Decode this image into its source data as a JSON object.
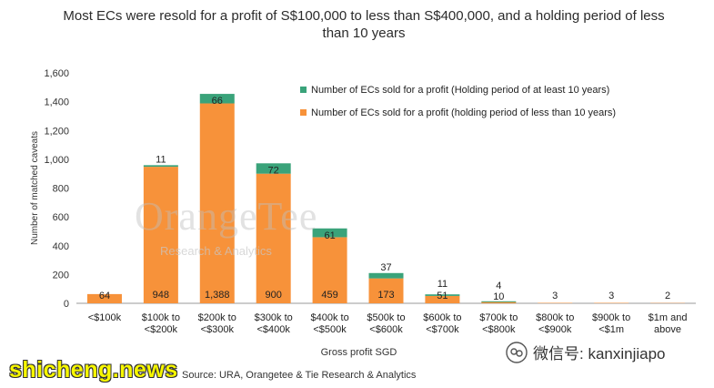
{
  "chart_data": {
    "type": "bar",
    "stacked": true,
    "title": "Most ECs were resold for a profit of S$100,000 to less than S$400,000, and a holding period of less than 10 years",
    "xlabel": "Gross profit SGD",
    "ylabel": "Number of matched caveats",
    "ylim": [
      0,
      1600
    ],
    "yticks": [
      "0",
      "200",
      "400",
      "600",
      "800",
      "1,000",
      "1,200",
      "1,400",
      "1,600"
    ],
    "grid": false,
    "legend_position": "top-right",
    "categories": [
      [
        "<$100k"
      ],
      [
        "$100k to",
        "<$200k"
      ],
      [
        "$200k to",
        "<$300k"
      ],
      [
        "$300k to",
        "<$400k"
      ],
      [
        "$400k to",
        "<$500k"
      ],
      [
        "$500k to",
        "<$600k"
      ],
      [
        "$600k to",
        "<$700k"
      ],
      [
        "$700k to",
        "<$800k"
      ],
      [
        "$800k to",
        "<$900k"
      ],
      [
        "$900k to",
        "<$1m"
      ],
      [
        "$1m and",
        "above"
      ]
    ],
    "series": [
      {
        "name": "Number of ECs sold for a profit (holding period of less than 10 years)",
        "color": "#f7923a",
        "values": [
          64,
          948,
          1388,
          900,
          459,
          173,
          51,
          10,
          3,
          3,
          2
        ],
        "labels": [
          "64",
          "948",
          "1,388",
          "900",
          "459",
          "173",
          "51",
          "10",
          "3",
          "3",
          "2"
        ]
      },
      {
        "name": "Number of ECs sold for a profit (Holding period of at least 10 years)",
        "color": "#3aa37a",
        "values": [
          0,
          11,
          66,
          72,
          61,
          37,
          11,
          4,
          0,
          0,
          0
        ],
        "labels": [
          "",
          "11",
          "66",
          "72",
          "61",
          "37",
          "11",
          "4",
          "",
          "",
          ""
        ]
      }
    ],
    "legend_order": [
      1,
      0
    ],
    "source": "Source: URA, Orangetee & Tie Research & Analytics"
  },
  "watermarks": {
    "brand": "OrangeTee",
    "brand_sub": "Research & Analytics",
    "site": "shicheng.news",
    "wechat": "微信号: kanxinjiapo"
  }
}
